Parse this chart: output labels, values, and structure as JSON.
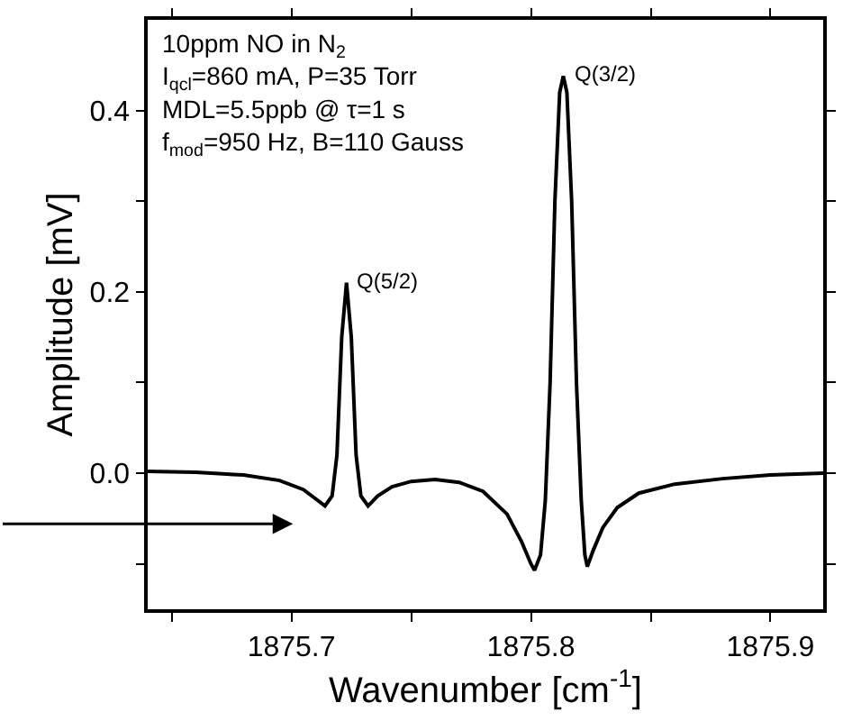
{
  "chart_data": {
    "type": "line",
    "xlabel": "Wavenumber [cm$^{-1}$]",
    "ylabel": "Amplitude [mV]",
    "x": [
      1875.64,
      1875.66,
      1875.68,
      1875.695,
      1875.705,
      1875.71,
      1875.714,
      1875.717,
      1875.719,
      1875.721,
      1875.723,
      1875.725,
      1875.727,
      1875.729,
      1875.732,
      1875.736,
      1875.742,
      1875.75,
      1875.76,
      1875.77,
      1875.78,
      1875.79,
      1875.796,
      1875.8,
      1875.8015,
      1875.804,
      1875.806,
      1875.808,
      1875.81,
      1875.812,
      1875.8135,
      1875.815,
      1875.817,
      1875.819,
      1875.821,
      1875.8225,
      1875.8235,
      1875.826,
      1875.83,
      1875.836,
      1875.845,
      1875.86,
      1875.88,
      1875.9,
      1875.922
    ],
    "series": [
      {
        "color": "#000000",
        "values": [
          0.002,
          0.001,
          -0.002,
          -0.008,
          -0.018,
          -0.028,
          -0.036,
          -0.025,
          0.02,
          0.15,
          0.21,
          0.15,
          0.02,
          -0.025,
          -0.036,
          -0.025,
          -0.015,
          -0.009,
          -0.007,
          -0.01,
          -0.02,
          -0.045,
          -0.075,
          -0.1,
          -0.107,
          -0.09,
          -0.03,
          0.1,
          0.3,
          0.42,
          0.438,
          0.42,
          0.3,
          0.1,
          -0.03,
          -0.09,
          -0.103,
          -0.085,
          -0.06,
          -0.038,
          -0.022,
          -0.012,
          -0.006,
          -0.002,
          0.0
        ]
      }
    ],
    "xlim": [
      1875.64,
      1875.922
    ],
    "xticks": [
      {
        "value": 1875.65,
        "label": null
      },
      1875.7,
      {
        "value": 1875.75,
        "label": null
      },
      1875.8,
      {
        "value": 1875.85,
        "label": null
      },
      1875.9
    ],
    "ylim": [
      -0.15,
      0.5
    ],
    "yticks": [
      {
        "value": -0.1,
        "label": null
      },
      {
        "value": 0.0,
        "label": "0.0"
      },
      {
        "value": 0.1,
        "label": null
      },
      0.2,
      {
        "value": 0.3,
        "label": null
      },
      0.4
    ],
    "annotations": [
      "10ppm NO in N$_{2}$",
      "I$_{qcl}$=860 mA, P=35 Torr",
      "MDL=5.5ppb @ τ=1 s",
      "f$_{mod}$=950 Hz, B=110 Gauss",
      {
        "text": "Q(5/2)",
        "x": 1875.723,
        "y": 0.21
      },
      {
        "text": "Q(3/2)",
        "x": 1875.8135,
        "y": 0.438
      }
    ],
    "marker": "none",
    "line_style": "solid"
  }
}
